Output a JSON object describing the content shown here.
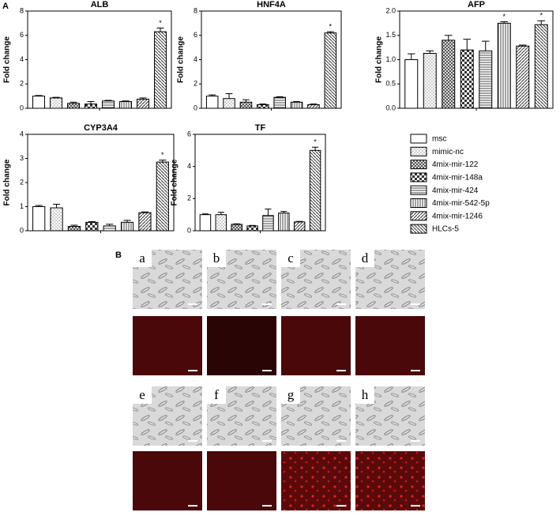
{
  "panel_labels": [
    "A",
    "B"
  ],
  "legend": [
    "msc",
    "mimic-nc",
    "4mix-mir-122",
    "4mix-mir-148a",
    "4mix-mir-424",
    "4mix-mir-542-5p",
    "4mix-mir-1246",
    "HLCs-5"
  ],
  "images": [
    "a",
    "b",
    "c",
    "d",
    "e",
    "f",
    "g",
    "h"
  ],
  "chart_data": [
    {
      "type": "bar",
      "title": "ALB",
      "ylabel": "Fold change",
      "values": [
        1.0,
        0.85,
        0.4,
        0.35,
        0.6,
        0.55,
        0.75,
        6.3
      ],
      "errors": [
        0.05,
        0.05,
        0.1,
        0.2,
        0.05,
        0.05,
        0.1,
        0.3
      ],
      "ylim": [
        0,
        8
      ],
      "yticks": [
        0,
        2,
        4,
        6,
        8
      ],
      "annotations": [
        {
          "text": "*",
          "bar": 7
        }
      ]
    },
    {
      "type": "bar",
      "title": "HNF4A",
      "ylabel": "Fold change",
      "values": [
        1.0,
        0.8,
        0.5,
        0.3,
        0.9,
        0.5,
        0.3,
        6.2
      ],
      "errors": [
        0.1,
        0.4,
        0.2,
        0.05,
        0.05,
        0.05,
        0.05,
        0.1
      ],
      "ylim": [
        0,
        8
      ],
      "yticks": [
        0,
        2,
        4,
        6,
        8
      ],
      "annotations": [
        {
          "text": "*",
          "bar": 7
        }
      ]
    },
    {
      "type": "bar",
      "title": "AFP",
      "ylabel": "Fold change",
      "values": [
        1.0,
        1.13,
        1.4,
        1.2,
        1.18,
        1.75,
        1.28,
        1.72
      ],
      "errors": [
        0.12,
        0.05,
        0.1,
        0.22,
        0.2,
        0.03,
        0.02,
        0.08
      ],
      "ylim": [
        0,
        2
      ],
      "yticks": [
        {
          "value": 0,
          "label": "0.0"
        },
        {
          "value": 0.5,
          "label": "0.5"
        },
        {
          "value": 1,
          "label": "1.0"
        },
        {
          "value": 1.5,
          "label": "1.5"
        },
        {
          "value": 2,
          "label": "2.0"
        }
      ],
      "annotations": [
        {
          "text": "*",
          "bar": 5
        },
        {
          "text": "*",
          "bar": 7
        }
      ]
    },
    {
      "type": "bar",
      "title": "CYP3A4",
      "ylabel": "Fold change",
      "values": [
        1.0,
        0.95,
        0.18,
        0.35,
        0.2,
        0.35,
        0.75,
        2.85
      ],
      "errors": [
        0.05,
        0.15,
        0.05,
        0.03,
        0.07,
        0.08,
        0.03,
        0.08
      ],
      "ylim": [
        0,
        4
      ],
      "yticks": [
        0,
        1,
        2,
        3,
        4
      ],
      "annotations": [
        {
          "text": "*",
          "bar": 7
        }
      ]
    },
    {
      "type": "bar",
      "title": "TF",
      "ylabel": "Fold change",
      "values": [
        1.0,
        1.0,
        0.4,
        0.3,
        0.95,
        1.1,
        0.55,
        5.0
      ],
      "errors": [
        0.05,
        0.15,
        0.03,
        0.03,
        0.4,
        0.1,
        0.03,
        0.2
      ],
      "ylim": [
        0,
        6
      ],
      "yticks": [
        0,
        2,
        4,
        6
      ],
      "annotations": [
        {
          "text": "*",
          "bar": 7
        }
      ]
    }
  ]
}
